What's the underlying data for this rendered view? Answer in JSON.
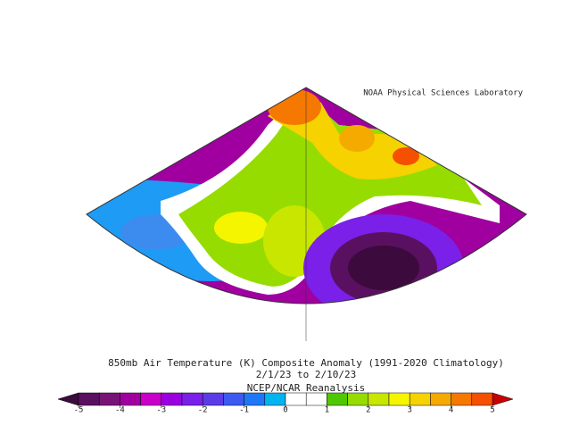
{
  "header": {
    "source": "NOAA Physical Sciences Laboratory"
  },
  "title": {
    "line1": "850mb Air Temperature (K) Composite Anomaly (1991-2020 Climatology)",
    "line2": "2/1/23  to 2/10/23",
    "line3": "NCEP/NCAR Reanalysis"
  },
  "colorbar": {
    "range": [
      -5,
      5
    ],
    "ticks": [
      -5,
      -4,
      -3,
      -2,
      -1,
      0,
      1,
      2,
      3,
      4,
      5
    ],
    "low_color": "#3c0a3c",
    "high_color": "#c80000",
    "colors": [
      "#5a1060",
      "#781478",
      "#a000a0",
      "#c800c8",
      "#9b00e0",
      "#7a20e8",
      "#5a3ce6",
      "#3c5af0",
      "#1e78f5",
      "#00b4f0",
      "#ffffff",
      "#ffffff",
      "#50c800",
      "#96dc00",
      "#c8e600",
      "#f5f500",
      "#f5d200",
      "#f5aa00",
      "#f57800",
      "#f55000"
    ]
  }
}
